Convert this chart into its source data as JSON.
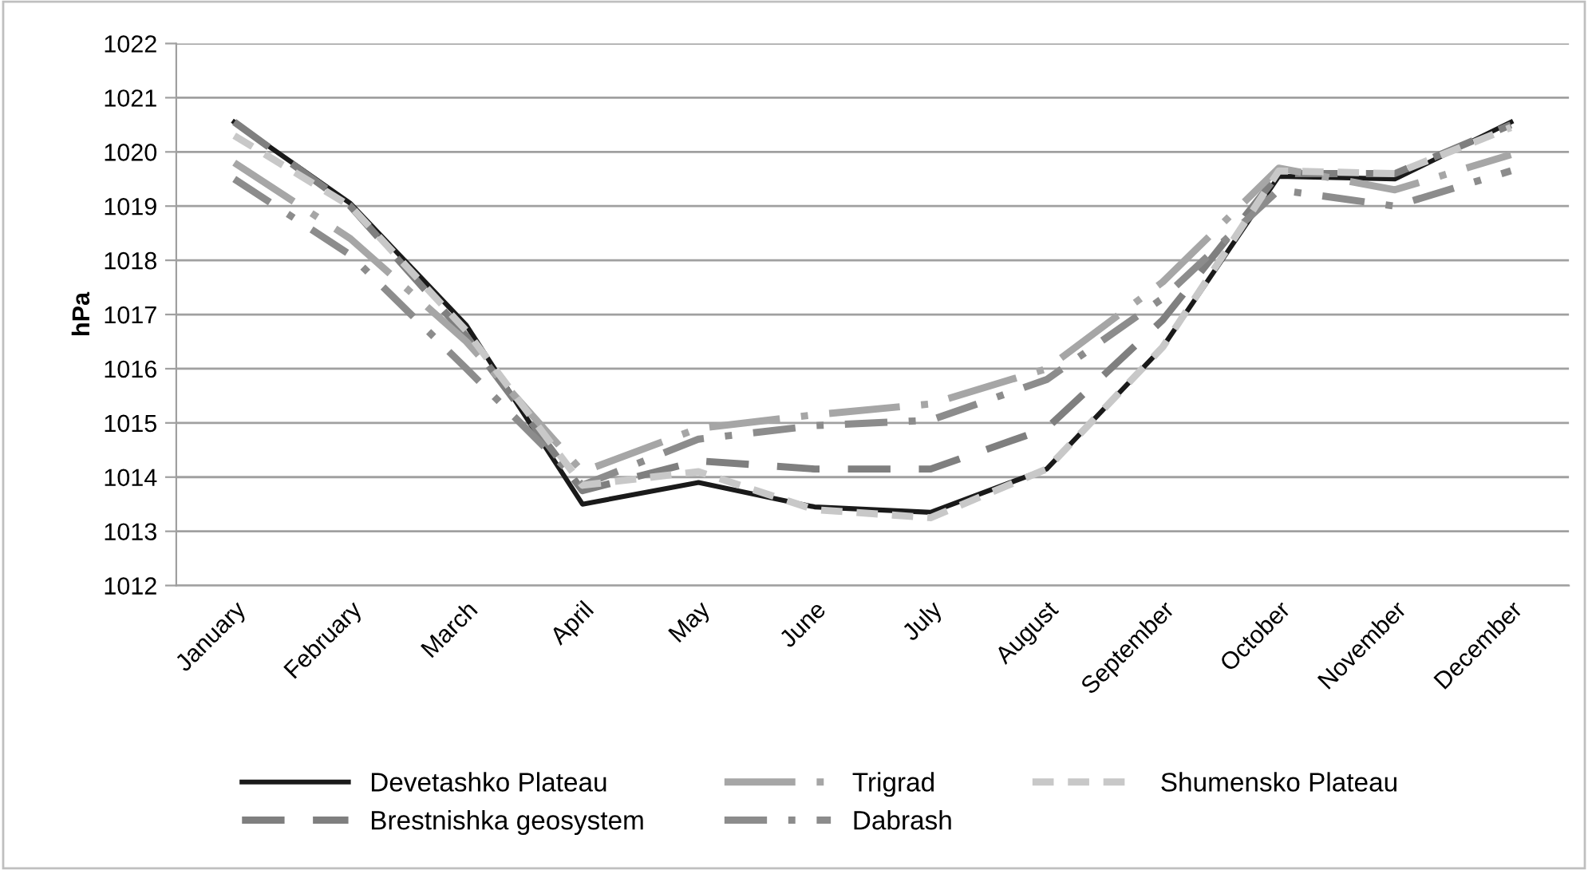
{
  "chart_data": {
    "type": "line",
    "ylabel": "hPa",
    "categories": [
      "January",
      "February",
      "March",
      "April",
      "May",
      "June",
      "July",
      "August",
      "September",
      "October",
      "November",
      "December"
    ],
    "ylim": [
      1012,
      1022
    ],
    "yticks": [
      1012,
      1013,
      1014,
      1015,
      1016,
      1017,
      1018,
      1019,
      1020,
      1021,
      1022
    ],
    "grid": "y",
    "legend": "bottom",
    "marker": "none",
    "series": [
      {
        "name": "Devetashko Plateau",
        "color": "#1a1a1a",
        "line_style": "solid",
        "values": [
          1020.55,
          1019.05,
          1016.8,
          1013.5,
          1013.9,
          1013.45,
          1013.35,
          1014.15,
          1016.4,
          1019.55,
          1019.5,
          1020.55
        ]
      },
      {
        "name": "Brestnishka geosystem",
        "color": "#7f7f7f",
        "line_style": "dashed",
        "values": [
          1020.55,
          1019.0,
          1016.6,
          1013.75,
          1014.3,
          1014.15,
          1014.15,
          1014.9,
          1016.9,
          1019.6,
          1019.6,
          1020.5
        ]
      },
      {
        "name": "Trigrad",
        "color": "#a6a6a6",
        "line_style": "dashed",
        "values": [
          1019.8,
          1018.4,
          1016.5,
          1014.1,
          1014.9,
          1015.15,
          1015.35,
          1016.0,
          1017.6,
          1019.7,
          1019.3,
          1019.95
        ]
      },
      {
        "name": "Dabrash",
        "color": "#8c8c8c",
        "line_style": "dashed",
        "values": [
          1019.5,
          1018.1,
          1016.0,
          1013.85,
          1014.7,
          1014.95,
          1015.05,
          1015.8,
          1017.3,
          1019.3,
          1019.0,
          1019.65
        ]
      },
      {
        "name": "Shumensko Plateau",
        "color": "#c8c8c8",
        "line_style": "dashed",
        "values": [
          1020.3,
          1019.0,
          1016.7,
          1013.85,
          1014.1,
          1013.4,
          1013.25,
          1014.15,
          1016.4,
          1019.65,
          1019.6,
          1020.45
        ]
      }
    ]
  }
}
